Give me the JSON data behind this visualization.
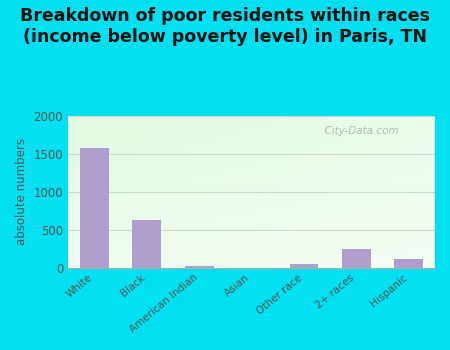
{
  "title": "Breakdown of poor residents within races\n(income below poverty level) in Paris, TN",
  "categories": [
    "White",
    "Black",
    "American Indian",
    "Asian",
    "Other race",
    "2+ races",
    "Hispanic"
  ],
  "values": [
    1580,
    630,
    20,
    0,
    55,
    240,
    115
  ],
  "bar_color": "#b09fcc",
  "ylabel": "absolute numbers",
  "ylim": [
    0,
    2000
  ],
  "yticks": [
    0,
    500,
    1000,
    1500,
    2000
  ],
  "background_outer": "#00e0f0",
  "title_fontsize": 12.5,
  "watermark": "  City-Data.com",
  "grid_color": "#ccddcc",
  "tick_color": "#555555",
  "label_color": "#555555"
}
